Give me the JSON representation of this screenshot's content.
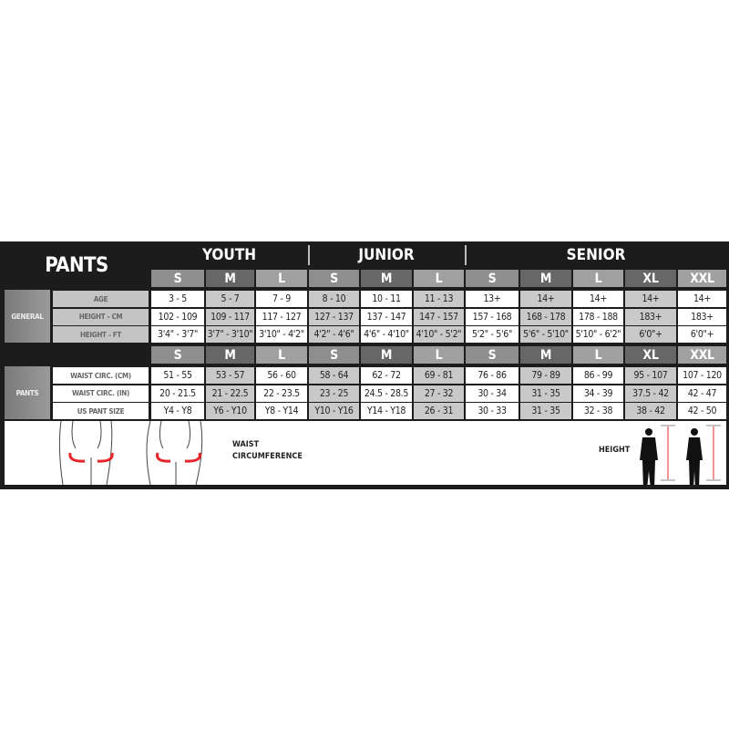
{
  "title": "PANTS",
  "groups": [
    "YOUTH",
    "JUNIOR",
    "SENIOR"
  ],
  "sizes": [
    "S",
    "M",
    "L",
    "S",
    "M",
    "L",
    "S",
    "M",
    "L",
    "XL",
    "XXL"
  ],
  "sections": [
    {
      "label": "GENERAL",
      "rows": [
        {
          "label": "AGE",
          "values": [
            "3 - 5",
            "5 - 7",
            "7 - 9",
            "8 - 10",
            "10 - 11",
            "11 - 13",
            "13+",
            "14+",
            "14+",
            "14+",
            "14+"
          ]
        },
        {
          "label": "HEIGHT - CM",
          "values": [
            "102 - 109",
            "109 - 117",
            "117 - 127",
            "127 - 137",
            "137 - 147",
            "147 - 157",
            "157 - 168",
            "168 - 178",
            "178 - 188",
            "183+",
            "183+"
          ]
        },
        {
          "label": "HEIGHT - FT",
          "values": [
            "3'4\" - 3'7\"",
            "3'7\" - 3'10\"",
            "3'10\" - 4'2\"",
            "4'2\" - 4'6\"",
            "4'6\" - 4'10\"",
            "4'10\" - 5'2\"",
            "5'2\" - 5'6\"",
            "5'6\" - 5'10\"",
            "5'10\" - 6'2\"",
            "6'0\"+",
            "6'0\"+"
          ]
        }
      ]
    },
    {
      "label": "PANTS",
      "rows": [
        {
          "label": "WAIST CIRC. (CM)",
          "values": [
            "51 - 55",
            "53 - 57",
            "56 - 60",
            "58 - 64",
            "62 - 72",
            "69 - 81",
            "76 - 86",
            "79 - 89",
            "86 - 99",
            "95 - 107",
            "107 - 120"
          ]
        },
        {
          "label": "WAIST CIRC. (IN)",
          "values": [
            "20 - 21.5",
            "21 - 22.5",
            "22 - 23.5",
            "23 - 25",
            "24.5 - 28.5",
            "27 - 32",
            "30 - 34",
            "31 - 35",
            "34 - 39",
            "37.5 - 42",
            "42 - 47"
          ]
        },
        {
          "label": "US PANT SIZE",
          "values": [
            "Y4 - Y8",
            "Y6 - Y10",
            "Y8 - Y14",
            "Y10 - Y16",
            "Y14 - Y18",
            "26 - 31",
            "30 - 33",
            "31 - 35",
            "32 - 38",
            "38 - 42",
            "42 - 50"
          ]
        }
      ]
    }
  ],
  "illustration": {
    "waist_label_1": "WAIST",
    "waist_label_2": "CIRCUMFERENCE",
    "height_label": "HEIGHT",
    "arrow_color": "#e8242a"
  }
}
